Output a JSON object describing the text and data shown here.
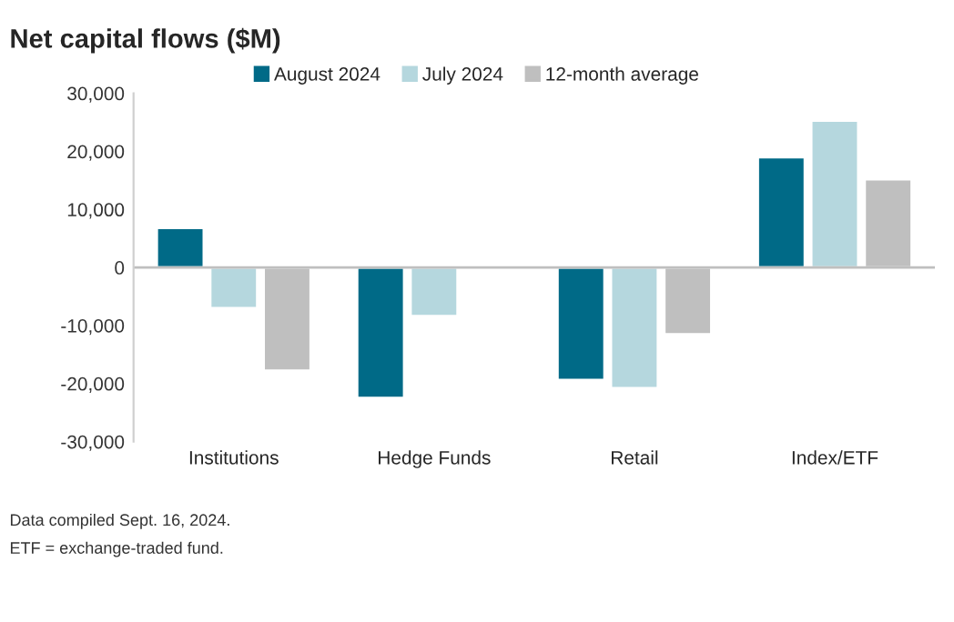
{
  "chart_data": {
    "type": "bar",
    "title": "Net capital flows ($M)",
    "categories": [
      "Institutions",
      "Hedge Funds",
      "Retail",
      "Index/ETF"
    ],
    "series": [
      {
        "name": "August 2024",
        "color": "#006a87",
        "values": [
          6800,
          -22500,
          -19400,
          19000
        ]
      },
      {
        "name": "July 2024",
        "color": "#b5d7de",
        "values": [
          -7000,
          -8400,
          -20800,
          25300
        ]
      },
      {
        "name": "12-month average",
        "color": "#bfbfbf",
        "values": [
          -17800,
          -200,
          -11500,
          15200
        ]
      }
    ],
    "ylim": [
      -30000,
      30000
    ],
    "yticks": [
      {
        "value": -30000,
        "label": "-30,000"
      },
      {
        "value": -20000,
        "label": "-20,000"
      },
      {
        "value": -10000,
        "label": "-10,000"
      },
      0,
      {
        "value": 10000,
        "label": "10,000"
      },
      {
        "value": 20000,
        "label": "20,000"
      },
      {
        "value": 30000,
        "label": "30,000"
      }
    ],
    "grid": false,
    "legend": "top",
    "ref_lines": [
      {
        "axis": "y",
        "value": 0,
        "color": "#bfbfbf"
      }
    ],
    "annotations": [
      "Data compiled Sept. 16, 2024.",
      "ETF = exchange-traded fund."
    ]
  }
}
